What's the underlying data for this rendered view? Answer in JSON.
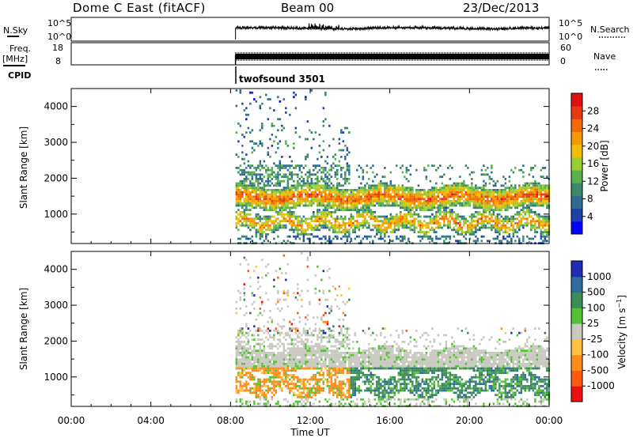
{
  "header": {
    "title": "Dome C East (fitACF)",
    "beam": "Beam 00",
    "date": "23/Dec/2013"
  },
  "panels": {
    "nsky": {
      "label": "N.Sky",
      "ticks": [
        "10^5",
        "10^0"
      ]
    },
    "nsearch": {
      "label": "N.Search",
      "ticks": [
        "10^5",
        "10^0"
      ]
    },
    "freq": {
      "label_line1": "Freq.",
      "label_line2": "[MHz]",
      "ticks": [
        "18",
        "8"
      ]
    },
    "nave": {
      "label": "Nave",
      "ticks": [
        "60",
        "0"
      ]
    },
    "cpid": {
      "label": "CPID",
      "value": "twofsound 3501"
    }
  },
  "chart_data": [
    {
      "type": "heatmap",
      "quantity": "power",
      "xlabel": "Time UT",
      "ylabel": "Slant Range [km]",
      "x_range_hours": [
        0,
        24
      ],
      "ylim": [
        180,
        4500
      ],
      "y_ticks": [
        "1000",
        "2000",
        "3000",
        "4000"
      ],
      "data_start_hour": 8.25,
      "colorbar": {
        "label": "Power [dB]",
        "ticks": [
          "4",
          "8",
          "12",
          "16",
          "20",
          "24",
          "28"
        ],
        "tick_values": [
          4,
          8,
          12,
          16,
          20,
          24,
          28
        ],
        "range": [
          0,
          32
        ],
        "colors": [
          "#0000ff",
          "#1f3fa8",
          "#2e6b8e",
          "#3a8a6a",
          "#5ab04a",
          "#9acd32",
          "#f0c000",
          "#f59a00",
          "#f26a00",
          "#e63a10",
          "#e01010"
        ]
      }
    },
    {
      "type": "heatmap",
      "quantity": "velocity",
      "xlabel": "Time UT",
      "ylabel": "Slant Range [km]",
      "x_range_hours": [
        0,
        24
      ],
      "ylim": [
        180,
        4500
      ],
      "y_ticks": [
        "1000",
        "2000",
        "3000",
        "4000"
      ],
      "data_start_hour": 8.25,
      "colorbar": {
        "label": "Velocity [m s^-1]",
        "ticks": [
          "1000",
          "500",
          "100",
          "25",
          "-25",
          "-100",
          "-500",
          "-1000"
        ],
        "colors": [
          "#1e2db4",
          "#2f6b9c",
          "#3d8d58",
          "#55c236",
          "#c8c8c0",
          "#ffc040",
          "#ff8c1a",
          "#ff5a10",
          "#ee1010"
        ]
      }
    }
  ],
  "x_ticks": [
    "00:00",
    "04:00",
    "08:00",
    "12:00",
    "16:00",
    "20:00",
    "00:00"
  ],
  "xlabel": "Time UT"
}
